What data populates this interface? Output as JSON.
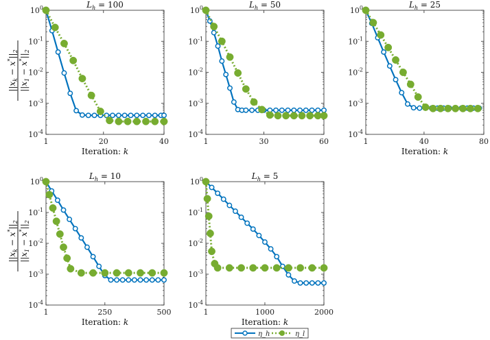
{
  "figure": {
    "ylabel_text": "||x_k − x*||_2 / ||x_1 − x*||_2",
    "legend": [
      "η_h",
      "η_l"
    ]
  },
  "colors": {
    "blue": "#0072BD",
    "green": "#77AC30",
    "axis": "#262626"
  },
  "chart_data": [
    {
      "type": "line",
      "title": "L_h = 100",
      "xlabel": "Iteration: k",
      "xlim": [
        1,
        40
      ],
      "xticks": [
        1,
        20,
        40
      ],
      "yscale": "log",
      "ylim": [
        0.0001,
        1
      ],
      "yticks": [
        0.0001,
        0.001,
        0.01,
        0.1,
        1
      ],
      "yticklabels": [
        "10^-4",
        "10^-3",
        "10^-2",
        "10^-1",
        "10^0"
      ],
      "series": [
        {
          "name": "η_h",
          "style": "solid-open-circle",
          "x": [
            1,
            3,
            5,
            7,
            9,
            11,
            13,
            15,
            17,
            19,
            21,
            23,
            25,
            27,
            29,
            31,
            33,
            35,
            37,
            39,
            40
          ],
          "y": [
            1,
            0.22,
            0.045,
            0.0095,
            0.0021,
            0.00058,
            0.00042,
            0.00041,
            0.00041,
            0.00041,
            0.00041,
            0.00041,
            0.00041,
            0.00041,
            0.00041,
            0.00041,
            0.00041,
            0.00041,
            0.00041,
            0.00041,
            0.00041
          ]
        },
        {
          "name": "η_l",
          "style": "dotted-filled-circle",
          "x": [
            1,
            4,
            7,
            10,
            13,
            16,
            19,
            22,
            25,
            28,
            31,
            34,
            37,
            40
          ],
          "y": [
            1,
            0.28,
            0.085,
            0.024,
            0.0063,
            0.0018,
            0.00055,
            0.00028,
            0.00026,
            0.00026,
            0.00026,
            0.00026,
            0.00026,
            0.00026
          ]
        }
      ]
    },
    {
      "type": "line",
      "title": "L_h = 50",
      "xlabel": "",
      "xlim": [
        1,
        60
      ],
      "xticks": [
        1,
        30,
        60
      ],
      "yscale": "log",
      "ylim": [
        0.0001,
        1
      ],
      "yticks": [
        0.0001,
        0.001,
        0.01,
        0.1,
        1
      ],
      "yticklabels": [
        "10^-4",
        "10^-3",
        "10^-2",
        "10^-1",
        "10^0"
      ],
      "series": [
        {
          "name": "η_h",
          "style": "solid-open-circle",
          "x": [
            1,
            3,
            5,
            7,
            9,
            11,
            13,
            15,
            17,
            19,
            21,
            24,
            27,
            30,
            33,
            36,
            39,
            42,
            45,
            48,
            51,
            54,
            57,
            60
          ],
          "y": [
            1,
            0.45,
            0.19,
            0.07,
            0.023,
            0.0085,
            0.0031,
            0.0011,
            0.00063,
            0.0006,
            0.0006,
            0.0006,
            0.0006,
            0.0006,
            0.0006,
            0.0006,
            0.0006,
            0.0006,
            0.0006,
            0.0006,
            0.0006,
            0.0006,
            0.0006,
            0.0006
          ]
        },
        {
          "name": "η_l",
          "style": "dotted-filled-circle",
          "x": [
            1,
            5,
            9,
            13,
            17,
            21,
            25,
            29,
            33,
            37,
            41,
            45,
            49,
            53,
            57,
            60
          ],
          "y": [
            1,
            0.3,
            0.1,
            0.031,
            0.0095,
            0.0029,
            0.0011,
            0.00063,
            0.00042,
            0.0004,
            0.0004,
            0.0004,
            0.0004,
            0.0004,
            0.0004,
            0.0004
          ]
        }
      ]
    },
    {
      "type": "line",
      "title": "L_h = 25",
      "xlabel": "Iteration: k",
      "xlim": [
        1,
        80
      ],
      "xticks": [
        1,
        40,
        80
      ],
      "yscale": "log",
      "ylim": [
        0.0001,
        1
      ],
      "yticks": [
        0.0001,
        0.001,
        0.01,
        0.1,
        1
      ],
      "yticklabels": [
        "10^-4",
        "10^-3",
        "10^-2",
        "10^-1",
        "10^0"
      ],
      "series": [
        {
          "name": "η_h",
          "style": "solid-open-circle",
          "x": [
            1,
            5,
            9,
            13,
            17,
            21,
            25,
            29,
            33,
            37,
            41,
            45,
            49,
            53,
            57,
            61,
            65,
            69,
            73,
            77
          ],
          "y": [
            1,
            0.38,
            0.13,
            0.045,
            0.016,
            0.0058,
            0.0022,
            0.00095,
            0.00072,
            0.0007,
            0.0007,
            0.0007,
            0.0007,
            0.0007,
            0.0007,
            0.0007,
            0.0007,
            0.0007,
            0.0007,
            0.0007
          ]
        },
        {
          "name": "η_l",
          "style": "dotted-filled-circle",
          "x": [
            1,
            6,
            11,
            16,
            21,
            26,
            31,
            36,
            41,
            46,
            51,
            56,
            61,
            66,
            71,
            76
          ],
          "y": [
            1,
            0.4,
            0.16,
            0.063,
            0.025,
            0.01,
            0.0041,
            0.0016,
            0.00075,
            0.00068,
            0.00068,
            0.00068,
            0.00068,
            0.00068,
            0.00068,
            0.00068
          ]
        }
      ]
    },
    {
      "type": "line",
      "title": "L_h = 10",
      "xlabel": "Iteration: k",
      "xlim": [
        1,
        500
      ],
      "xticks": [
        1,
        250,
        500
      ],
      "yscale": "log",
      "ylim": [
        0.0001,
        1
      ],
      "yticks": [
        0.0001,
        0.001,
        0.01,
        0.1,
        1
      ],
      "yticklabels": [
        "10^-4",
        "10^-3",
        "10^-2",
        "10^-1",
        "10^0"
      ],
      "series": [
        {
          "name": "η_h",
          "style": "solid-open-circle",
          "x": [
            1,
            25,
            50,
            75,
            100,
            125,
            150,
            175,
            200,
            225,
            250,
            275,
            300,
            325,
            350,
            375,
            400,
            425,
            450,
            475,
            500
          ],
          "y": [
            1,
            0.5,
            0.25,
            0.12,
            0.06,
            0.03,
            0.015,
            0.0075,
            0.0037,
            0.0018,
            0.0009,
            0.00065,
            0.00065,
            0.00065,
            0.00065,
            0.00065,
            0.00065,
            0.00065,
            0.00065,
            0.00065,
            0.00065
          ]
        },
        {
          "name": "η_l",
          "style": "dotted-filled-circle",
          "x": [
            1,
            15,
            30,
            45,
            60,
            75,
            90,
            105,
            150,
            200,
            250,
            300,
            350,
            400,
            450,
            500
          ],
          "y": [
            1,
            0.38,
            0.14,
            0.052,
            0.02,
            0.0075,
            0.0033,
            0.0015,
            0.0011,
            0.0011,
            0.0011,
            0.0011,
            0.0011,
            0.0011,
            0.0011,
            0.0011
          ]
        }
      ]
    },
    {
      "type": "line",
      "title": "L_h = 5",
      "xlabel": "Iteration: k",
      "xlim": [
        1,
        2000
      ],
      "xticks": [
        1,
        1000,
        2000
      ],
      "yscale": "log",
      "ylim": [
        0.0001,
        1
      ],
      "yticks": [
        0.0001,
        0.001,
        0.01,
        0.1,
        1
      ],
      "yticklabels": [
        "10^-4",
        "10^-3",
        "10^-2",
        "10^-1",
        "10^0"
      ],
      "series": [
        {
          "name": "η_h",
          "style": "solid-open-circle",
          "x": [
            1,
            100,
            200,
            300,
            400,
            500,
            600,
            700,
            800,
            900,
            1000,
            1100,
            1200,
            1300,
            1400,
            1500,
            1600,
            1700,
            1800,
            1900,
            2000
          ],
          "y": [
            1,
            0.65,
            0.42,
            0.27,
            0.17,
            0.11,
            0.07,
            0.045,
            0.029,
            0.018,
            0.011,
            0.0066,
            0.0037,
            0.0018,
            0.00095,
            0.0006,
            0.00052,
            0.00052,
            0.00052,
            0.00052,
            0.00052
          ]
        },
        {
          "name": "η_l",
          "style": "dotted-filled-circle",
          "x": [
            1,
            25,
            50,
            75,
            100,
            150,
            200,
            400,
            600,
            800,
            1000,
            1200,
            1400,
            1600,
            1800,
            2000
          ],
          "y": [
            1,
            0.28,
            0.076,
            0.021,
            0.0055,
            0.0022,
            0.0016,
            0.0016,
            0.0016,
            0.0016,
            0.0016,
            0.0016,
            0.0016,
            0.0016,
            0.0016,
            0.0016
          ]
        }
      ]
    }
  ]
}
